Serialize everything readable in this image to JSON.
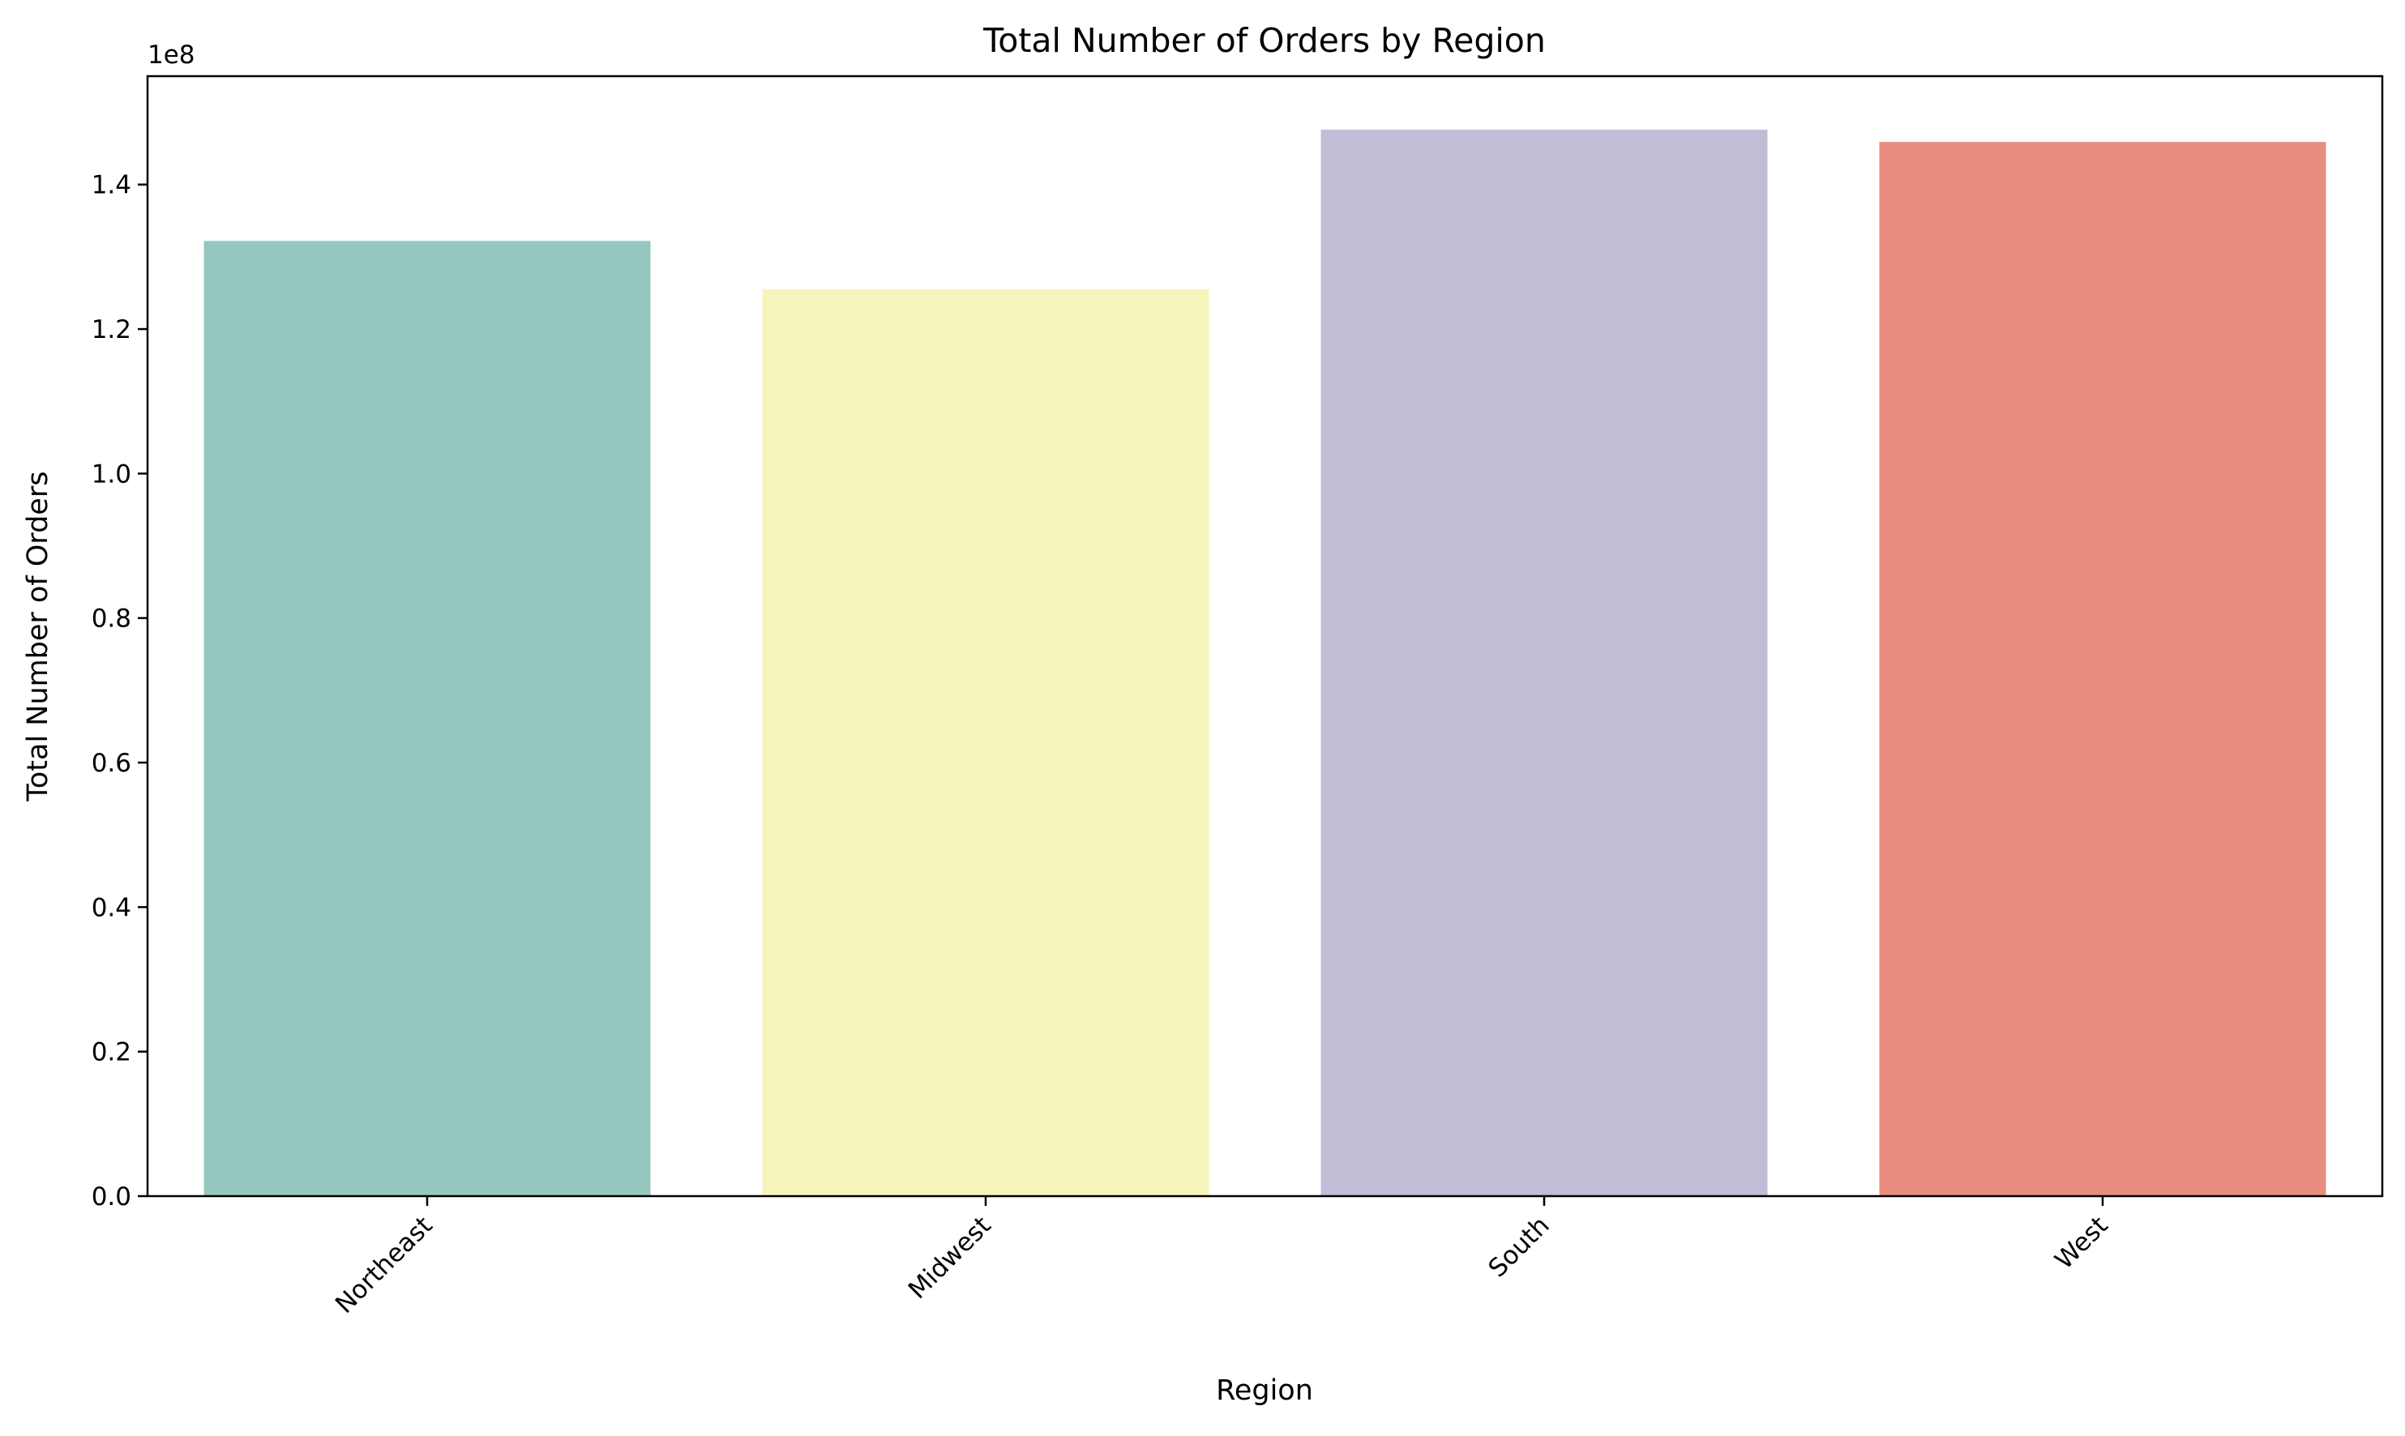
{
  "chart_data": {
    "type": "bar",
    "title": "Total Number of Orders by Region",
    "xlabel": "Region",
    "ylabel": "Total Number of Orders",
    "offset_label": "1e8",
    "categories": [
      "Northeast",
      "Midwest",
      "South",
      "West"
    ],
    "values": [
      132200000,
      125500000,
      147600000,
      145900000
    ],
    "colors": [
      "#96c8c0",
      "#f5f5bc",
      "#c2bdd6",
      "#e98d81"
    ],
    "ylim": [
      0,
      155000000
    ],
    "yticks": [
      0,
      20000000,
      40000000,
      60000000,
      80000000,
      100000000,
      120000000,
      140000000
    ],
    "ytick_labels": [
      "0.0",
      "0.2",
      "0.4",
      "0.6",
      "0.8",
      "1.0",
      "1.2",
      "1.4"
    ],
    "xtick_rotation_deg": 45,
    "grid": false,
    "legend": "none"
  }
}
